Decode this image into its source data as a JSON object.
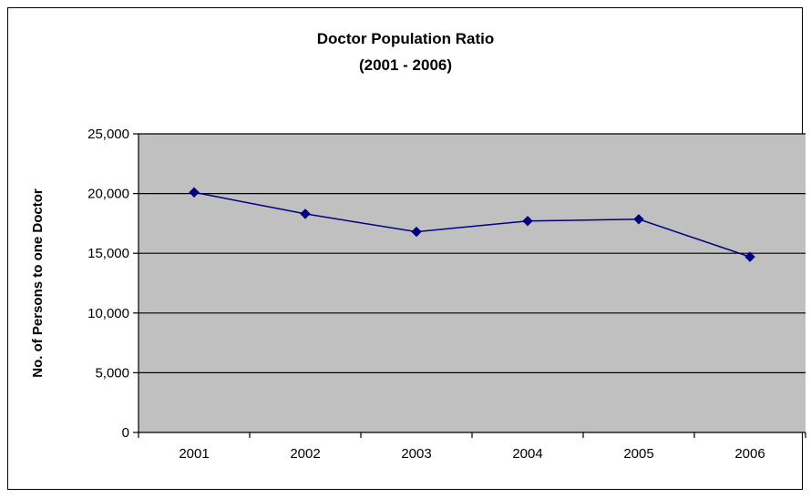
{
  "chart_data": {
    "type": "line",
    "title": "Doctor Population Ratio",
    "subtitle": "(2001 - 2006)",
    "xlabel": "",
    "ylabel": "No. of Persons to one Doctor",
    "categories": [
      "2001",
      "2002",
      "2003",
      "2004",
      "2005",
      "2006"
    ],
    "series": [
      {
        "values": [
          20100,
          18300,
          16800,
          17700,
          17850,
          14700
        ]
      }
    ],
    "ylim": [
      0,
      25000
    ],
    "yticks": [
      0,
      5000,
      10000,
      15000,
      20000,
      25000
    ],
    "ytick_labels": [
      "0",
      "5,000",
      "10,000",
      "15,000",
      "20,000",
      "25,000"
    ],
    "grid": "horizontal",
    "legend": "none",
    "colors": {
      "plot_bg": "#c0c0c0",
      "line": "#000080",
      "grid": "#000000"
    }
  }
}
